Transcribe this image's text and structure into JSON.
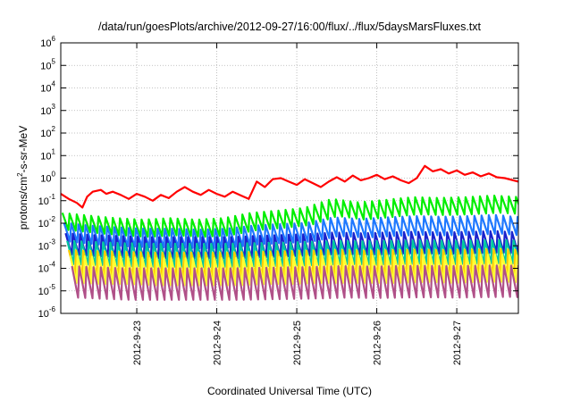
{
  "chart_data": {
    "type": "line",
    "title": "/data/run/goesPlots/archive/2012-09-27/16:00/flux/../flux/5daysMarsFluxes.txt",
    "xlabel": "Coordinated Universal Time (UTC)",
    "ylabel": "protons/cm2-s-sr-MeV",
    "ylabel_parts": {
      "before": "protons/cm",
      "sup": "2",
      "after": "-s-sr-MeV"
    },
    "yscale": "log",
    "ylim": [
      1e-06,
      1000000.0
    ],
    "xlim_days": [
      22.05,
      27.77
    ],
    "grid": true,
    "xticks": [
      {
        "day": 23,
        "label": "2012-9-23"
      },
      {
        "day": 24,
        "label": "2012-9-24"
      },
      {
        "day": 25,
        "label": "2012-9-25"
      },
      {
        "day": 26,
        "label": "2012-9-26"
      },
      {
        "day": 27,
        "label": "2012-9-27"
      }
    ],
    "yticks": [
      {
        "exp": -6,
        "base": "10",
        "sup": "-6"
      },
      {
        "exp": -5,
        "base": "10",
        "sup": "-5"
      },
      {
        "exp": -4,
        "base": "10",
        "sup": "-4"
      },
      {
        "exp": -3,
        "base": "10",
        "sup": "-3"
      },
      {
        "exp": -2,
        "base": "10",
        "sup": "-2"
      },
      {
        "exp": -1,
        "base": "10",
        "sup": "-1"
      },
      {
        "exp": 0,
        "base": "10",
        "sup": "0"
      },
      {
        "exp": 1,
        "base": "10",
        "sup": "1"
      },
      {
        "exp": 2,
        "base": "10",
        "sup": "2"
      },
      {
        "exp": 3,
        "base": "10",
        "sup": "3"
      },
      {
        "exp": 4,
        "base": "10",
        "sup": "4"
      },
      {
        "exp": 5,
        "base": "10",
        "sup": "5"
      },
      {
        "exp": 6,
        "base": "10",
        "sup": "6"
      }
    ],
    "series": [
      {
        "color": "#ff0000",
        "x": [
          22.05,
          22.15,
          22.25,
          22.32,
          22.38,
          22.45,
          22.55,
          22.62,
          22.7,
          22.8,
          22.9,
          23.0,
          23.1,
          23.2,
          23.3,
          23.4,
          23.5,
          23.6,
          23.7,
          23.8,
          23.9,
          24.0,
          24.1,
          24.2,
          24.3,
          24.4,
          24.5,
          24.6,
          24.7,
          24.8,
          24.9,
          25.0,
          25.1,
          25.2,
          25.3,
          25.4,
          25.5,
          25.6,
          25.7,
          25.8,
          25.9,
          26.0,
          26.1,
          26.2,
          26.3,
          26.4,
          26.5,
          26.6,
          26.7,
          26.8,
          26.9,
          27.0,
          27.1,
          27.2,
          27.3,
          27.4,
          27.5,
          27.6,
          27.77
        ],
        "y": [
          0.2,
          0.12,
          0.08,
          0.05,
          0.15,
          0.25,
          0.3,
          0.2,
          0.25,
          0.18,
          0.12,
          0.2,
          0.15,
          0.1,
          0.18,
          0.13,
          0.25,
          0.4,
          0.25,
          0.18,
          0.3,
          0.2,
          0.15,
          0.25,
          0.17,
          0.12,
          0.7,
          0.4,
          0.9,
          1.0,
          0.7,
          0.5,
          0.9,
          0.6,
          0.4,
          0.7,
          1.1,
          0.7,
          1.3,
          0.8,
          1.0,
          1.4,
          0.9,
          1.2,
          0.8,
          0.6,
          1.0,
          3.5,
          2.0,
          2.5,
          1.6,
          2.2,
          1.4,
          1.8,
          1.2,
          1.6,
          1.1,
          1.0,
          0.7
        ]
      },
      {
        "color": "#00ee00",
        "base": [
          0.012,
          0.009,
          0.007,
          0.006,
          0.007,
          0.006,
          0.007,
          0.012,
          0.015,
          0.02,
          0.05,
          0.035,
          0.045,
          0.06,
          0.055,
          0.06,
          0.07,
          0.06
        ],
        "amp": 2.4
      },
      {
        "color": "#1e78ff",
        "base": [
          0.004,
          0.003,
          0.0025,
          0.0022,
          0.0022,
          0.002,
          0.0022,
          0.003,
          0.0035,
          0.004,
          0.007,
          0.006,
          0.007,
          0.008,
          0.0075,
          0.008,
          0.009,
          0.007
        ],
        "amp": 2.6
      },
      {
        "color": "#1a22cc",
        "base": [
          0.0012,
          0.001,
          0.0009,
          0.0008,
          0.0008,
          0.0008,
          0.0008,
          0.0009,
          0.001,
          0.0011,
          0.0013,
          0.0012,
          0.0013,
          0.0014,
          0.0013,
          0.0014,
          0.0015,
          0.0013
        ],
        "amp": 3.0
      },
      {
        "color": "#00c8a0",
        "base": [
          0.0005,
          0.00045,
          0.0004,
          0.00038,
          0.00038,
          0.00037,
          0.00038,
          0.0004,
          0.00042,
          0.00045,
          0.0005,
          0.00048,
          0.0005,
          0.00052,
          0.0005,
          0.00052,
          0.00055,
          0.0005
        ],
        "amp": 3.3
      },
      {
        "color": "#ffcc00",
        "base": [
          0.00018,
          0.00016,
          0.00015,
          0.00014,
          0.00014,
          0.00014,
          0.00014,
          0.00015,
          0.00016,
          0.00017,
          0.00018,
          0.00017,
          0.00018,
          0.00019,
          0.00018,
          0.00019,
          0.0002,
          0.00018
        ],
        "amp": 3.6
      },
      {
        "color": "#ffff30",
        "base": [
          9e-05,
          8e-05,
          8e-05,
          7e-05,
          7e-05,
          7e-05,
          7e-05,
          8e-05,
          8e-05,
          9e-05,
          9e-05,
          9e-05,
          9e-05,
          0.0001,
          9e-05,
          0.0001,
          0.0001,
          9e-05
        ],
        "amp": 4.0
      },
      {
        "color": "#b05088",
        "base": [
          2.5e-05,
          2.2e-05,
          2e-05,
          2e-05,
          2e-05,
          2e-05,
          2e-05,
          2.1e-05,
          2.2e-05,
          2.3e-05,
          2.5e-05,
          2.4e-05,
          2.5e-05,
          2.6e-05,
          2.5e-05,
          2.6e-05,
          2.7e-05,
          2.5e-05
        ],
        "amp": 5.0
      }
    ]
  }
}
